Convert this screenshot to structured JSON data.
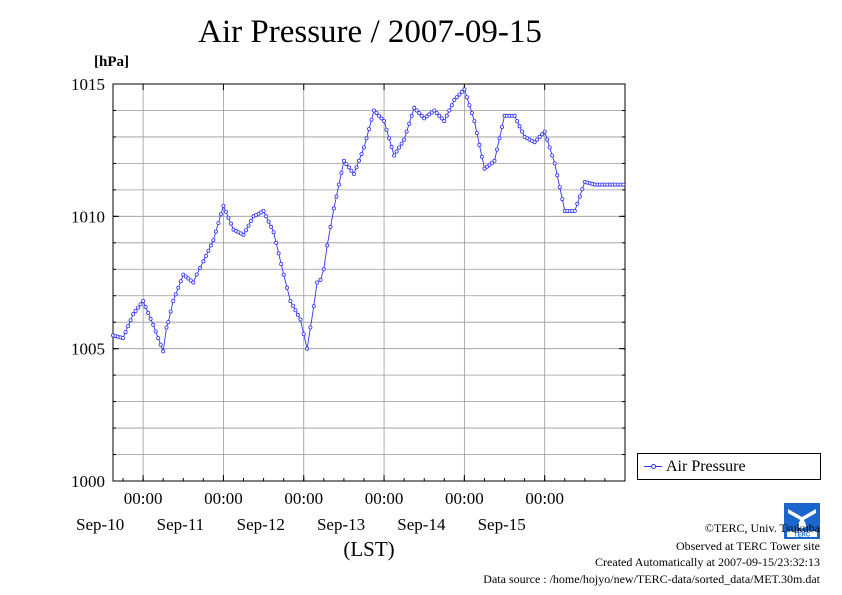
{
  "chart_data": {
    "type": "line",
    "title": "Air Pressure / 2007-09-15",
    "ylabel": "[hPa]",
    "xlabel": "(LST)",
    "ylim": [
      1000,
      1015
    ],
    "yticks": [
      "1000",
      "1005",
      "1010",
      "1015"
    ],
    "xlim": [
      "2007-09-09T15:00",
      "2007-09-16T00:00"
    ],
    "xticks": [
      {
        "time": "00:00",
        "date": "Sep-10"
      },
      {
        "time": "00:00",
        "date": "Sep-11"
      },
      {
        "time": "00:00",
        "date": "Sep-12"
      },
      {
        "time": "00:00",
        "date": "Sep-13"
      },
      {
        "time": "00:00",
        "date": "Sep-14"
      },
      {
        "time": "00:00",
        "date": "Sep-15"
      }
    ],
    "grid": true,
    "legend_position": "right",
    "series": [
      {
        "name": "Air Pressure",
        "color": "#3333ff",
        "marker": "open-circle",
        "x": [
          "2007-09-09T15:00",
          "2007-09-09T18:00",
          "2007-09-09T21:00",
          "2007-09-10T00:00",
          "2007-09-10T03:00",
          "2007-09-10T06:00",
          "2007-09-10T07:00",
          "2007-09-10T07:30",
          "2007-09-10T09:00",
          "2007-09-10T12:00",
          "2007-09-10T15:00",
          "2007-09-10T16:00",
          "2007-09-10T18:00",
          "2007-09-10T21:00",
          "2007-09-11T00:00",
          "2007-09-11T03:00",
          "2007-09-11T06:00",
          "2007-09-11T09:00",
          "2007-09-11T12:00",
          "2007-09-11T15:00",
          "2007-09-11T18:00",
          "2007-09-11T20:00",
          "2007-09-11T23:00",
          "2007-09-12T01:00",
          "2007-09-12T03:00",
          "2007-09-12T04:00",
          "2007-09-12T05:00",
          "2007-09-12T06:00",
          "2007-09-12T07:00",
          "2007-09-12T09:00",
          "2007-09-12T12:00",
          "2007-09-12T15:00",
          "2007-09-12T18:00",
          "2007-09-12T21:00",
          "2007-09-13T00:00",
          "2007-09-13T03:00",
          "2007-09-13T06:00",
          "2007-09-13T09:00",
          "2007-09-13T12:00",
          "2007-09-13T15:00",
          "2007-09-13T18:00",
          "2007-09-13T21:00",
          "2007-09-14T00:00",
          "2007-09-14T03:00",
          "2007-09-14T06:00",
          "2007-09-14T09:00",
          "2007-09-14T12:00",
          "2007-09-14T15:00",
          "2007-09-14T18:00",
          "2007-09-14T21:00",
          "2007-09-15T00:00",
          "2007-09-15T03:00",
          "2007-09-15T06:00",
          "2007-09-15T09:00",
          "2007-09-15T12:00",
          "2007-09-15T15:00",
          "2007-09-15T18:00",
          "2007-09-15T21:00",
          "2007-09-15T23:30"
        ],
        "values": [
          1005.5,
          1005.4,
          1006.3,
          1006.8,
          1005.9,
          1004.9,
          1005.8,
          1006.0,
          1006.8,
          1007.8,
          1007.5,
          1007.8,
          1008.3,
          1009.1,
          1010.4,
          1009.5,
          1009.3,
          1010.0,
          1010.2,
          1009.4,
          1007.8,
          1006.8,
          1006.1,
          1005.0,
          1006.6,
          1007.5,
          1007.6,
          1008.0,
          1008.9,
          1010.3,
          1012.1,
          1011.6,
          1012.6,
          1014.0,
          1013.6,
          1012.3,
          1012.9,
          1014.1,
          1013.7,
          1014.0,
          1013.6,
          1014.4,
          1014.8,
          1013.6,
          1011.8,
          1012.1,
          1013.8,
          1013.8,
          1013.0,
          1012.8,
          1013.2,
          1012.0,
          1010.2,
          1010.2,
          1011.3,
          1011.2,
          1011.2,
          1011.2,
          1011.2
        ]
      }
    ]
  },
  "legend": {
    "label": "Air Pressure"
  },
  "footer": {
    "copyright": "©TERC, Univ. Tsukuba",
    "observed": "Observed at TERC Tower site",
    "created": "Created Automatically at 2007-09-15/23:32:13",
    "source": "Data source : /home/hojyo/new/TERC-data/sorted_data/MET.30m.dat"
  },
  "logo": {
    "text": "TERC",
    "color": "#1a66cc"
  }
}
